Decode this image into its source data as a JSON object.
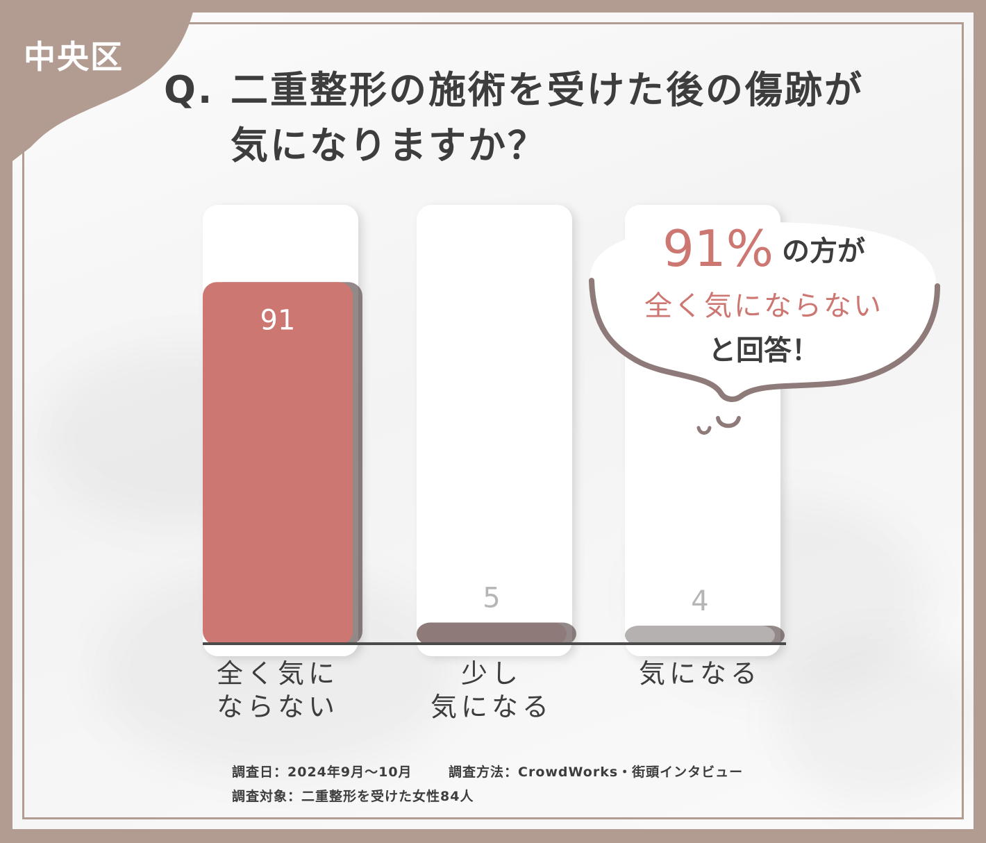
{
  "badge": {
    "label": "中央区"
  },
  "chart_data": {
    "type": "bar",
    "title_prefix": "Q.",
    "title_line1": "二重整形の施術を受けた後の傷跡が",
    "title_line2": "気になりますか？",
    "categories": [
      "全く気に\nならない",
      "少し\n気になる",
      "気になる"
    ],
    "values": [
      91,
      5,
      4
    ],
    "ylim": [
      0,
      100
    ],
    "bar_colors": [
      "#cd7772",
      "#8e7a78",
      "#b5b1b0"
    ],
    "value_label_colors": [
      "#ffffff",
      "#b5b5b5",
      "#b5b5b5"
    ],
    "grid": false
  },
  "callout": {
    "percent": "91%",
    "suffix": "の方が",
    "highlight": "全く気にならない",
    "closing": "と回答！",
    "highlight_color": "#cd7772"
  },
  "footnotes": {
    "date": "調査日：2024年9月～10月",
    "method": "調査方法：CrowdWorks・街頭インタビュー",
    "target": "調査対象：二重整形を受けた女性84人"
  }
}
